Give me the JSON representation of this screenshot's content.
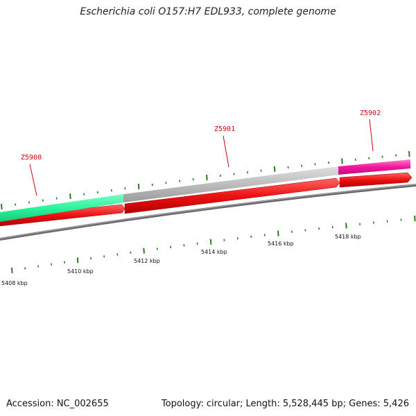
{
  "title": "Escherichia coli O157:H7 EDL933, complete genome",
  "footer": {
    "accession": "Accession: NC_002655",
    "summary": "Topology: circular; Length: 5,528,445 bp; Genes: 5,426"
  },
  "genes": [
    {
      "name": "Z5900",
      "color": "#2bf59c"
    },
    {
      "name": "Z5901",
      "color": "#bdbdbd"
    },
    {
      "name": "Z5902",
      "color": "#f2169c"
    }
  ],
  "coding_strand_color": "#ee1111",
  "tick_color": "#2a7a1e",
  "kbp_labels": [
    "5408 kbp",
    "5410 kbp",
    "5412 kbp",
    "5414 kbp",
    "5416 kbp",
    "5418 kbp"
  ]
}
